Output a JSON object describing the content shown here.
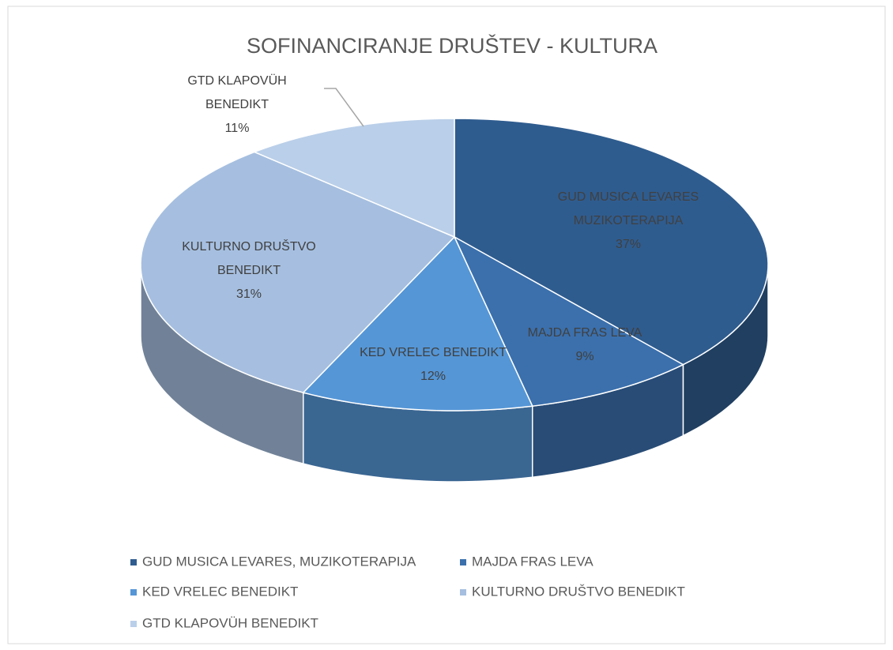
{
  "chart_data": {
    "type": "pie3d",
    "title": "SOFINANCIRANJE DRUŠTEV - KULTURA",
    "categories": [
      "GUD MUSICA LEVARES, MUZIKOTERAPIJA",
      "MAJDA FRAS LEVA",
      "KED VRELEC BENEDIKT",
      "KULTURNO DRUŠTVO BENEDIKT",
      "GTD KLAPOVÜH BENEDIKT"
    ],
    "data_labels": [
      [
        "GUD MUSICA LEVARES",
        "MUZIKOTERAPIJA"
      ],
      [
        "MAJDA FRAS LEVA"
      ],
      [
        "KED VRELEC BENEDIKT"
      ],
      [
        "KULTURNO DRUŠTVO",
        "BENEDIKT"
      ],
      [
        "GTD KLAPOVÜH",
        "BENEDIKT"
      ]
    ],
    "values": [
      37,
      9,
      12,
      31,
      11
    ],
    "value_labels": [
      "37%",
      "9%",
      "12%",
      "31%",
      "11%"
    ],
    "colors": [
      "#2f5c8f",
      "#3b70ad",
      "#5596d6",
      "#a6bfe0",
      "#bacfe9"
    ],
    "legend": "bottom"
  }
}
